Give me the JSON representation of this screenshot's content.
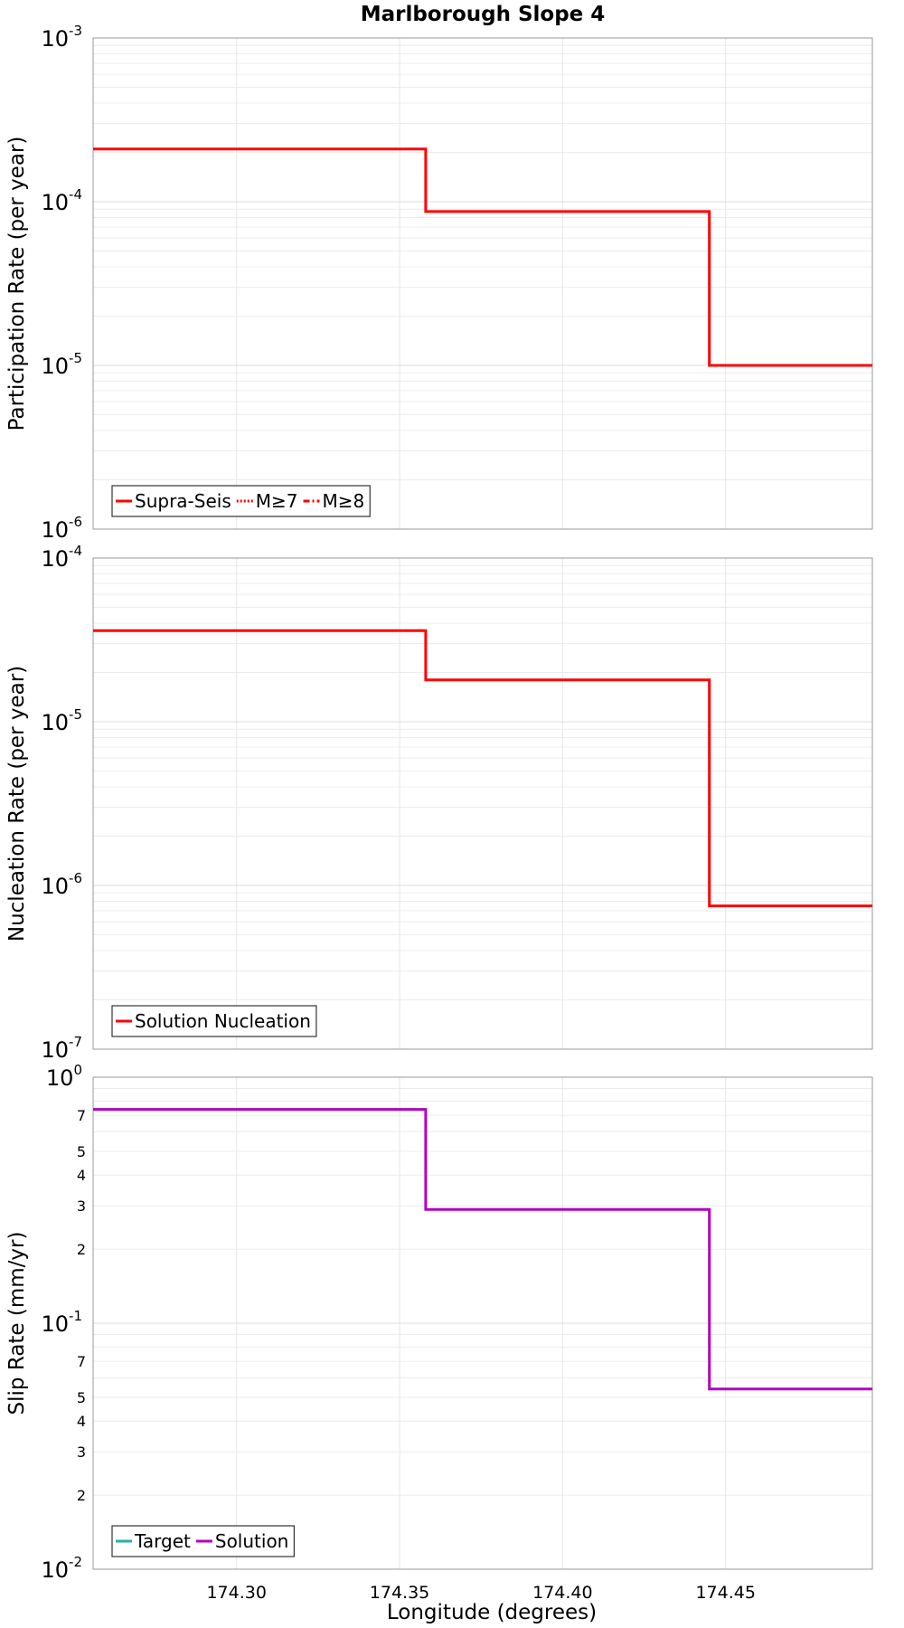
{
  "chart_data": [
    {
      "type": "line",
      "title": "Marlborough Slope 4",
      "ylabel": "Participation Rate (per year)",
      "yscale": "log",
      "ylim": [
        1e-06,
        0.001
      ],
      "xlim": [
        174.256,
        174.495
      ],
      "grid": true,
      "legend_position": "bottom-left",
      "series": [
        {
          "name": "Supra-Seis",
          "style": "solid",
          "color": "#ff0000",
          "x": [
            174.256,
            174.358,
            174.358,
            174.445,
            174.445,
            174.495
          ],
          "y": [
            0.00021,
            0.00021,
            8.7e-05,
            8.7e-05,
            1e-05,
            1e-05
          ]
        },
        {
          "name": "M≥7",
          "style": "dotted",
          "color": "#ff0000",
          "x": [
            174.256,
            174.358,
            174.358,
            174.445,
            174.445,
            174.495
          ],
          "y": [
            0.00021,
            0.00021,
            8.7e-05,
            8.7e-05,
            1e-05,
            1e-05
          ]
        },
        {
          "name": "M≥8",
          "style": "dash-dot",
          "color": "#ff0000",
          "x": [],
          "y": []
        }
      ]
    },
    {
      "type": "line",
      "ylabel": "Nucleation Rate (per year)",
      "yscale": "log",
      "ylim": [
        1e-07,
        0.0001
      ],
      "xlim": [
        174.256,
        174.495
      ],
      "grid": true,
      "legend_position": "bottom-left",
      "series": [
        {
          "name": "Solution Nucleation",
          "style": "solid",
          "color": "#ff0000",
          "x": [
            174.256,
            174.358,
            174.358,
            174.445,
            174.445,
            174.495
          ],
          "y": [
            3.6e-05,
            3.6e-05,
            1.8e-05,
            1.8e-05,
            7.5e-07,
            7.5e-07
          ]
        }
      ]
    },
    {
      "type": "line",
      "xlabel": "Longitude (degrees)",
      "ylabel": "Slip Rate (mm/yr)",
      "yscale": "log",
      "ylim": [
        0.01,
        1
      ],
      "xlim": [
        174.256,
        174.495
      ],
      "x_ticks": [
        174.3,
        174.35,
        174.4,
        174.45
      ],
      "x_tick_labels": [
        "174.30",
        "174.35",
        "174.40",
        "174.45"
      ],
      "grid": true,
      "legend_position": "bottom-left",
      "series": [
        {
          "name": "Target",
          "style": "solid",
          "color": "#20b2aa",
          "x": [],
          "y": []
        },
        {
          "name": "Solution",
          "style": "solid",
          "color": "#b000c0",
          "x": [
            174.256,
            174.358,
            174.358,
            174.445,
            174.445,
            174.495
          ],
          "y": [
            0.74,
            0.74,
            0.29,
            0.29,
            0.054,
            0.054
          ]
        }
      ]
    }
  ]
}
